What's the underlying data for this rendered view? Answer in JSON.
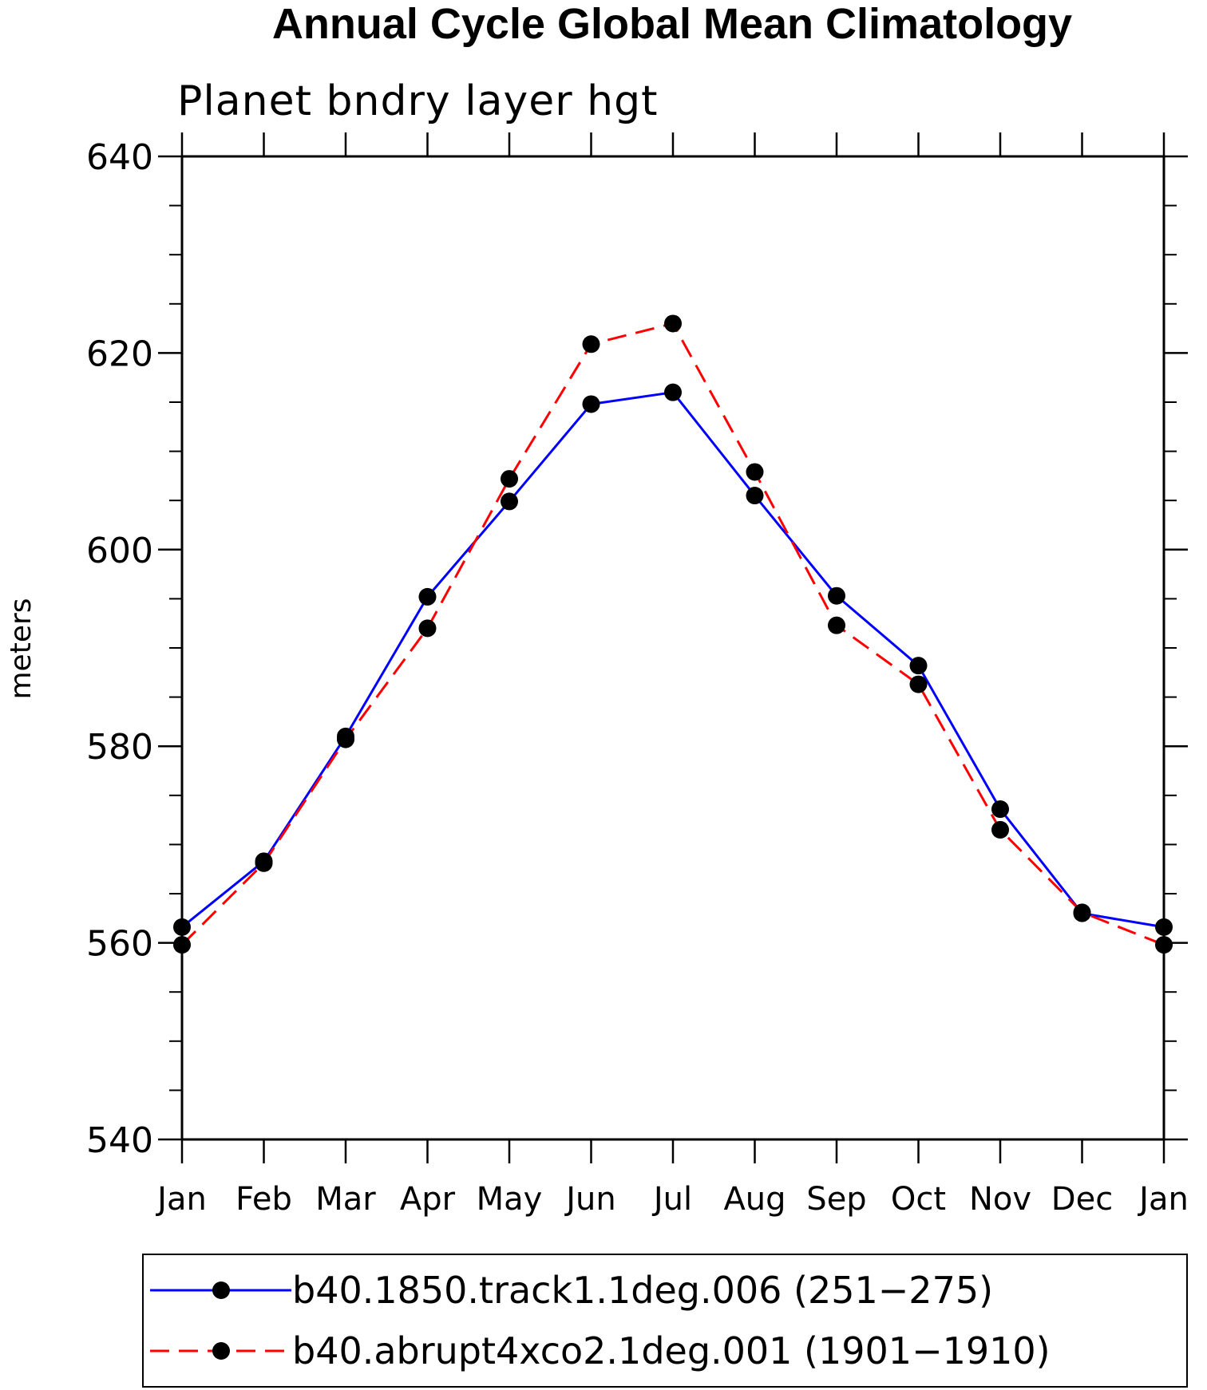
{
  "chart_data": {
    "type": "line",
    "title": "Annual Cycle Global Mean Climatology",
    "subtitle": "Planet bndry layer hgt",
    "ylabel": "meters",
    "xlabel": "",
    "categories": [
      "Jan",
      "Feb",
      "Mar",
      "Apr",
      "May",
      "Jun",
      "Jul",
      "Aug",
      "Sep",
      "Oct",
      "Nov",
      "Dec",
      "Jan"
    ],
    "ylim": [
      540,
      640
    ],
    "yticks": [
      540,
      560,
      580,
      600,
      620,
      640
    ],
    "grid": false,
    "legend_position": "bottom",
    "series": [
      {
        "name": "b40.1850.track1.1deg.006 (251−275)",
        "color": "#0000ff",
        "line_style": "solid",
        "marker": "filled-circle",
        "values": [
          561.6,
          568.3,
          581.0,
          595.2,
          604.9,
          614.8,
          616.0,
          605.5,
          595.3,
          588.2,
          573.6,
          563.0,
          561.6
        ]
      },
      {
        "name": "b40.abrupt4xco2.1deg.001 (1901−1910)",
        "color": "#ff0000",
        "line_style": "dashed",
        "marker": "filled-circle",
        "values": [
          559.8,
          568.1,
          580.7,
          592.0,
          607.2,
          620.9,
          623.0,
          607.9,
          592.3,
          586.3,
          571.5,
          563.1,
          559.8
        ]
      }
    ]
  }
}
